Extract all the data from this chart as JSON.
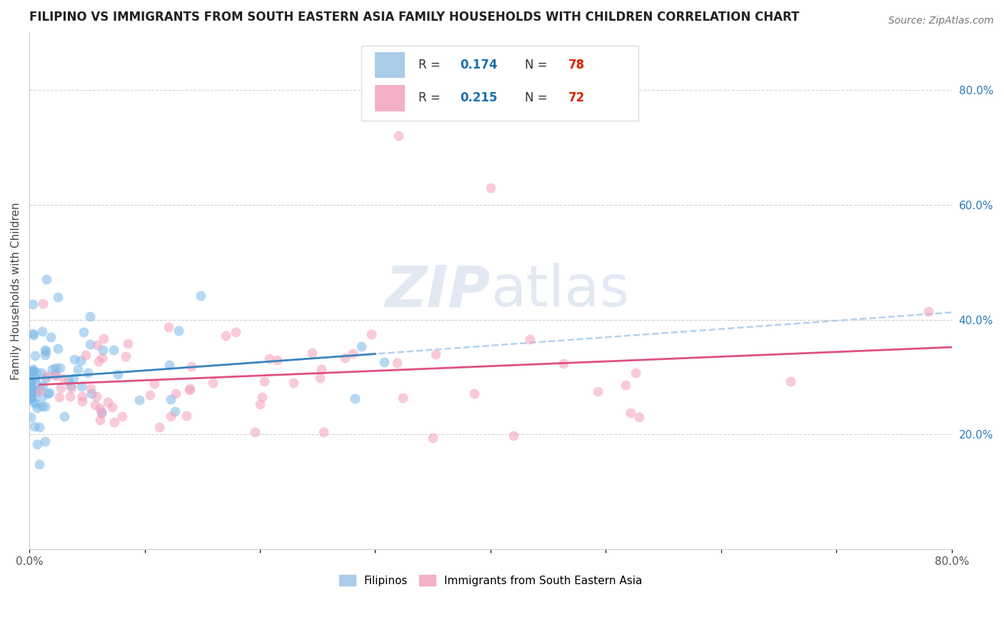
{
  "title": "FILIPINO VS IMMIGRANTS FROM SOUTH EASTERN ASIA FAMILY HOUSEHOLDS WITH CHILDREN CORRELATION CHART",
  "source": "Source: ZipAtlas.com",
  "ylabel": "Family Households with Children",
  "xlim": [
    0.0,
    0.8
  ],
  "ylim": [
    0.0,
    0.9
  ],
  "ytick_positions": [
    0.2,
    0.4,
    0.6,
    0.8
  ],
  "ytick_labels": [
    "20.0%",
    "40.0%",
    "60.0%",
    "80.0%"
  ],
  "grid_color": "#cccccc",
  "background_color": "#ffffff",
  "filipino_color": "#7ab8e8",
  "sea_color": "#f4a0bc",
  "filipino_line_color": "#3a85c0",
  "sea_line_color": "#e05080",
  "dashed_line_color": "#aaccee",
  "filipino_R": 0.174,
  "filipino_N": 78,
  "sea_R": 0.215,
  "sea_N": 72,
  "legend_R_color": "#1a6faf",
  "legend_N_color": "#dd2200",
  "watermark_color": "#c8d4e8",
  "title_fontsize": 12,
  "source_fontsize": 10,
  "tick_color": "#2b7bba"
}
